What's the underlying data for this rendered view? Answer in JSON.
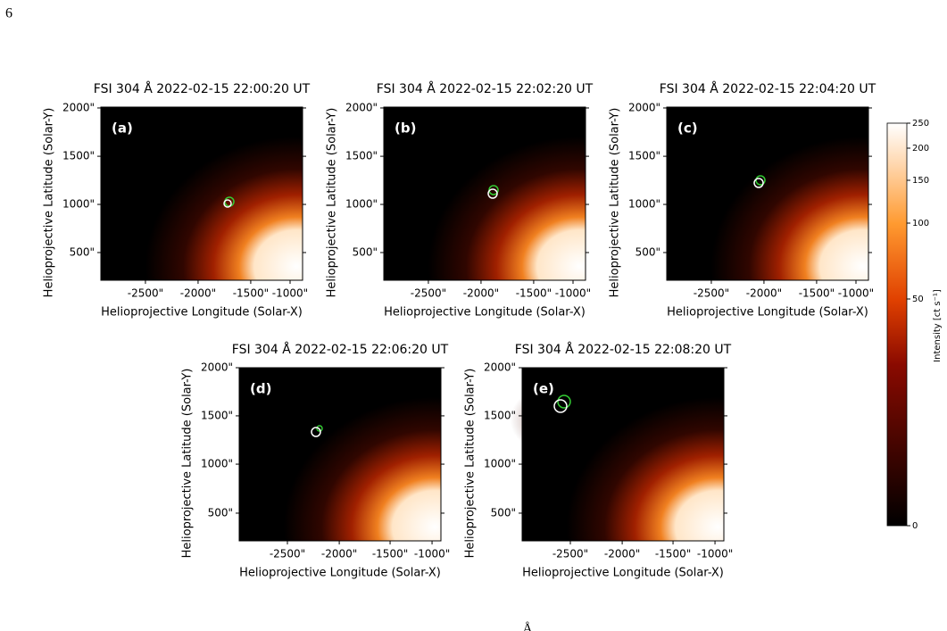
{
  "page_number": "6",
  "panels": [
    {
      "label": "(a)",
      "title": "FSI 304 Å 2022-02-15 22:00:20 UT",
      "x_label": "Helioprojective Longitude (Solar-X)",
      "y_label": "Helioprojective Latitude (Solar-Y)",
      "x_ticks": [
        "-2500\"",
        "-2000\"",
        "-1500\"",
        "-1000\""
      ],
      "y_ticks": [
        "2000\"",
        "1500\"",
        "1000\"",
        "500\""
      ]
    },
    {
      "label": "(b)",
      "title": "FSI 304 Å 2022-02-15 22:02:20 UT",
      "x_label": "Helioprojective Longitude (Solar-X)",
      "y_label": "Helioprojective Latitude (Solar-Y)",
      "x_ticks": [
        "-2500\"",
        "-2000\"",
        "-1500\"",
        "-1000\""
      ],
      "y_ticks": [
        "2000\"",
        "1500\"",
        "1000\"",
        "500\""
      ]
    },
    {
      "label": "(c)",
      "title": "FSI 304 Å 2022-02-15 22:04:20 UT",
      "x_label": "Helioprojective Longitude (Solar-X)",
      "y_label": "Helioprojective Latitude (Solar-Y)",
      "x_ticks": [
        "-2500\"",
        "-2000\"",
        "-1500\"",
        "-1000\""
      ],
      "y_ticks": [
        "2000\"",
        "1500\"",
        "1000\"",
        "500\""
      ]
    },
    {
      "label": "(d)",
      "title": "FSI 304 Å 2022-02-15 22:06:20 UT",
      "x_label": "Helioprojective Longitude (Solar-X)",
      "y_label": "Helioprojective Latitude (Solar-Y)",
      "x_ticks": [
        "-2500\"",
        "-2000\"",
        "-1500\"",
        "-1000\""
      ],
      "y_ticks": [
        "2000\"",
        "1500\"",
        "1000\"",
        "500\""
      ]
    },
    {
      "label": "(e)",
      "title": "FSI 304 Å 2022-02-15 22:08:20 UT",
      "x_label": "Helioprojective Longitude (Solar-X)",
      "y_label": "Helioprojective Latitude (Solar-Y)",
      "x_ticks": [
        "-2500\"",
        "-2000\"",
        "-1500\"",
        "-1000\""
      ],
      "y_ticks": [
        "2000\"",
        "1500\"",
        "1000\"",
        "500\""
      ]
    }
  ],
  "colorbar": {
    "label": "Intensity [ct s⁻¹]",
    "ticks": [
      "0",
      "50",
      "100",
      "150",
      "200",
      "250"
    ]
  },
  "footer": "Å"
}
